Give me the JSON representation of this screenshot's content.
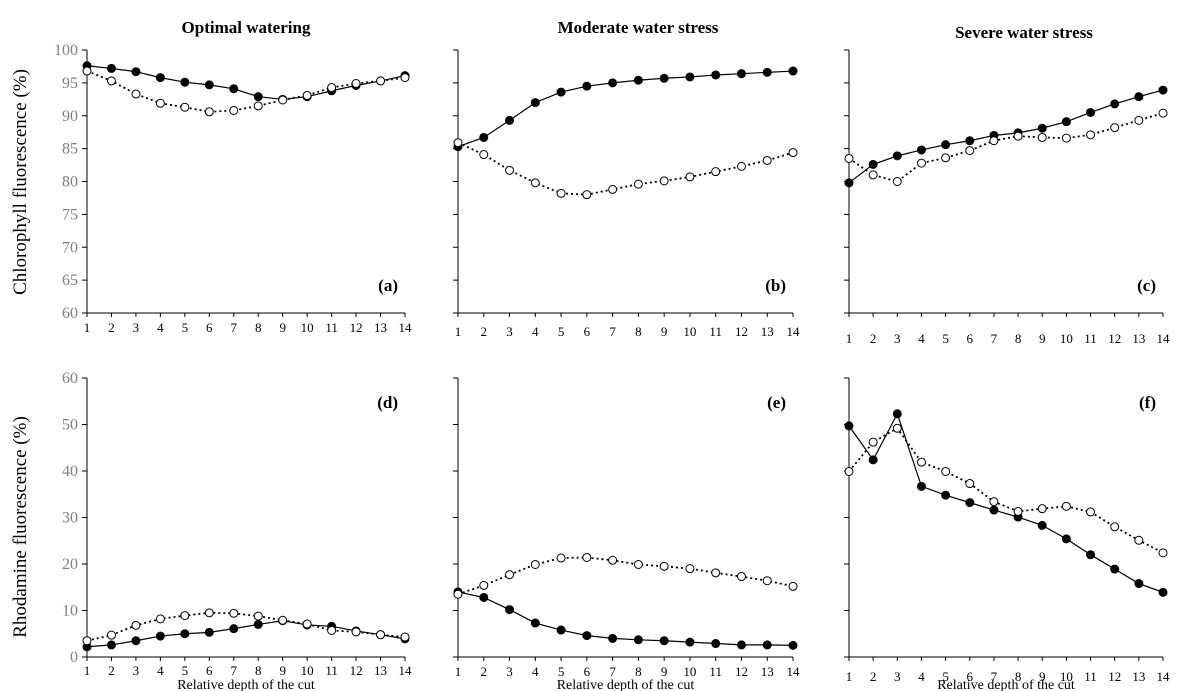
{
  "column_titles": [
    "Optimal watering",
    "Moderate water stress",
    "Severe water stress"
  ],
  "row_ylabels": [
    "Chlorophyll fluorescence (%)",
    "Rhodamine fluorescence (%)"
  ],
  "colors": {
    "line": "#000000",
    "filled_marker": "#000000",
    "open_marker": "#ffffff",
    "tick_label": "#7f7f7f"
  },
  "chart_data": [
    {
      "type": "line",
      "panel_label": "(a)",
      "row": "Chlorophyll fluorescence",
      "column": "Optimal watering",
      "x": [
        1,
        2,
        3,
        4,
        5,
        6,
        7,
        8,
        9,
        10,
        11,
        12,
        13,
        14
      ],
      "xlabel": "",
      "ylabel": "Chlorophyll fluorescence (%)",
      "ylim": [
        60,
        100
      ],
      "yticks": [
        60,
        65,
        70,
        75,
        80,
        85,
        90,
        95,
        100
      ],
      "show_ytick_labels": true,
      "series": [
        {
          "marker": "filled",
          "style": "solid",
          "values": [
            97.6,
            97.2,
            96.7,
            95.8,
            95.1,
            94.7,
            94.1,
            92.9,
            92.5,
            92.9,
            93.8,
            94.6,
            95.3,
            96.1
          ]
        },
        {
          "marker": "open",
          "style": "dotted",
          "values": [
            96.8,
            95.3,
            93.3,
            91.9,
            91.3,
            90.6,
            90.8,
            91.5,
            92.4,
            93.1,
            94.3,
            94.9,
            95.3,
            95.8
          ]
        }
      ]
    },
    {
      "type": "line",
      "panel_label": "(b)",
      "row": "Chlorophyll fluorescence",
      "column": "Moderate water stress",
      "x": [
        1,
        2,
        3,
        4,
        5,
        6,
        7,
        8,
        9,
        10,
        11,
        12,
        13,
        14
      ],
      "xlabel": "",
      "ylabel": "",
      "ylim": [
        60,
        100
      ],
      "yticks": [
        60,
        65,
        70,
        75,
        80,
        85,
        90,
        95,
        100
      ],
      "show_ytick_labels": false,
      "series": [
        {
          "marker": "filled",
          "style": "solid",
          "values": [
            85.3,
            86.7,
            89.3,
            92.0,
            93.6,
            94.5,
            95.0,
            95.4,
            95.7,
            95.9,
            96.2,
            96.4,
            96.6,
            96.8
          ]
        },
        {
          "marker": "open",
          "style": "dotted",
          "values": [
            85.9,
            84.1,
            81.7,
            79.8,
            78.2,
            78.0,
            78.8,
            79.6,
            80.1,
            80.7,
            81.5,
            82.3,
            83.2,
            84.4
          ]
        }
      ]
    },
    {
      "type": "line",
      "panel_label": "(c)",
      "row": "Chlorophyll fluorescence",
      "column": "Severe water stress",
      "x": [
        1,
        2,
        3,
        4,
        5,
        6,
        7,
        8,
        9,
        10,
        11,
        12,
        13,
        14
      ],
      "xlabel": "",
      "ylabel": "",
      "ylim": [
        60,
        100
      ],
      "yticks": [
        60,
        65,
        70,
        75,
        80,
        85,
        90,
        95,
        100
      ],
      "show_ytick_labels": false,
      "series": [
        {
          "marker": "filled",
          "style": "solid",
          "values": [
            79.8,
            82.6,
            83.9,
            84.8,
            85.6,
            86.2,
            87.0,
            87.4,
            88.1,
            89.1,
            90.5,
            91.8,
            92.9,
            93.9
          ]
        },
        {
          "marker": "open",
          "style": "dotted",
          "values": [
            83.5,
            81.0,
            80.0,
            82.8,
            83.6,
            84.7,
            86.2,
            86.9,
            86.7,
            86.6,
            87.1,
            88.2,
            89.3,
            90.4
          ]
        }
      ]
    },
    {
      "type": "line",
      "panel_label": "(d)",
      "row": "Rhodamine fluorescence",
      "column": "Optimal watering",
      "x": [
        1,
        2,
        3,
        4,
        5,
        6,
        7,
        8,
        9,
        10,
        11,
        12,
        13,
        14
      ],
      "xlabel": "Relative  depth of the cut",
      "ylabel": "Rhodamine fluorescence (%)",
      "ylim": [
        0,
        60
      ],
      "yticks": [
        0,
        10,
        20,
        30,
        40,
        50,
        60
      ],
      "show_ytick_labels": true,
      "series": [
        {
          "marker": "filled",
          "style": "solid",
          "values": [
            2.2,
            2.6,
            3.5,
            4.5,
            5.0,
            5.3,
            6.1,
            7.0,
            7.8,
            6.9,
            6.6,
            5.6,
            4.8,
            3.9
          ]
        },
        {
          "marker": "open",
          "style": "dotted",
          "values": [
            3.5,
            4.7,
            6.8,
            8.2,
            8.9,
            9.5,
            9.4,
            8.8,
            7.9,
            7.1,
            5.7,
            5.4,
            4.8,
            4.3
          ]
        }
      ]
    },
    {
      "type": "line",
      "panel_label": "(e)",
      "row": "Rhodamine fluorescence",
      "column": "Moderate water stress",
      "x": [
        1,
        2,
        3,
        4,
        5,
        6,
        7,
        8,
        9,
        10,
        11,
        12,
        13,
        14
      ],
      "xlabel": "Relative  depth of the cut",
      "ylabel": "",
      "ylim": [
        0,
        60
      ],
      "yticks": [
        0,
        10,
        20,
        30,
        40,
        50,
        60
      ],
      "show_ytick_labels": false,
      "series": [
        {
          "marker": "filled",
          "style": "solid",
          "values": [
            14.0,
            12.8,
            10.2,
            7.3,
            5.8,
            4.6,
            4.0,
            3.7,
            3.5,
            3.2,
            2.9,
            2.6,
            2.6,
            2.5
          ]
        },
        {
          "marker": "open",
          "style": "dotted",
          "values": [
            13.5,
            15.4,
            17.7,
            19.9,
            21.3,
            21.4,
            20.8,
            19.9,
            19.5,
            19.0,
            18.1,
            17.3,
            16.4,
            15.2
          ]
        }
      ]
    },
    {
      "type": "line",
      "panel_label": "(f)",
      "row": "Rhodamine fluorescence",
      "column": "Severe water stress",
      "x": [
        1,
        2,
        3,
        4,
        5,
        6,
        7,
        8,
        9,
        10,
        11,
        12,
        13,
        14
      ],
      "xlabel": "Relative  depth of the cut",
      "ylabel": "",
      "ylim": [
        0,
        60
      ],
      "yticks": [
        0,
        10,
        20,
        30,
        40,
        50,
        60
      ],
      "show_ytick_labels": false,
      "series": [
        {
          "marker": "filled",
          "style": "solid",
          "values": [
            49.7,
            42.4,
            52.3,
            36.7,
            34.8,
            33.2,
            31.6,
            30.1,
            28.3,
            25.4,
            22.0,
            18.9,
            15.8,
            13.9
          ]
        },
        {
          "marker": "open",
          "style": "dotted",
          "values": [
            39.9,
            46.2,
            49.2,
            41.9,
            39.9,
            37.3,
            33.4,
            31.3,
            31.9,
            32.4,
            31.2,
            28.0,
            25.1,
            22.4
          ]
        }
      ]
    }
  ]
}
